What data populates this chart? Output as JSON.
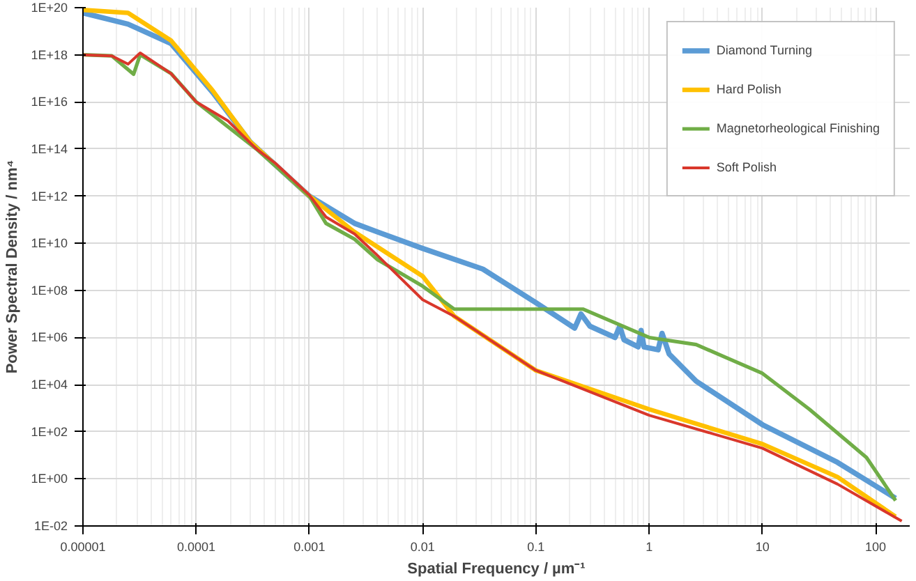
{
  "chart_data": {
    "type": "line",
    "xlabel": "Spatial Frequency / µm⁻¹",
    "ylabel": "Power Spectral Density / nm⁴",
    "log": "xy",
    "grid": true,
    "legend": "top right",
    "marker": "none",
    "line_style": "solid",
    "xlim": [
      1e-05,
      200
    ],
    "xticks": [
      {
        "value": 1e-05,
        "label": "0.00001"
      },
      {
        "value": 0.0001,
        "label": "0.0001"
      },
      {
        "value": 0.001,
        "label": "0.001"
      },
      {
        "value": 0.01,
        "label": "0.01"
      },
      {
        "value": 0.1,
        "label": "0.1"
      },
      1,
      10,
      100
    ],
    "ylim": [
      0.01,
      1e+20
    ],
    "yticks": [
      {
        "value": 0.01,
        "label": "1E-02"
      },
      {
        "value": 1,
        "label": "1E+00"
      },
      {
        "value": 100,
        "label": "1E+02"
      },
      {
        "value": 10000.0,
        "label": "1E+04"
      },
      {
        "value": 1000000.0,
        "label": "1E+06"
      },
      {
        "value": 100000000.0,
        "label": "1E+08"
      },
      {
        "value": 10000000000.0,
        "label": "1E+10"
      },
      {
        "value": 1000000000000.0,
        "label": "1E+12"
      },
      {
        "value": 100000000000000.0,
        "label": "1E+14"
      },
      {
        "value": 1e+16,
        "label": "1E+16"
      },
      {
        "value": 1e+18,
        "label": "1E+18"
      },
      {
        "value": 1e+20,
        "label": "1E+20"
      }
    ],
    "series": [
      {
        "name": "Diamond Turning",
        "color": "#5b9bd5",
        "x": [
          1e-05,
          2.5e-05,
          6e-05,
          0.00014,
          0.0003,
          0.001,
          0.0025,
          0.004,
          0.01,
          0.034,
          0.1,
          0.22,
          0.25,
          0.3,
          0.5,
          0.55,
          0.6,
          0.8,
          0.85,
          0.9,
          1.2,
          1.3,
          1.5,
          2.6,
          10,
          46,
          150
        ],
        "values": [
          6e+19,
          2e+19,
          3e+18,
          2.5e+16,
          200000000000000.0,
          1000000000000.0,
          70000000000.0,
          30000000000.0,
          6000000000.0,
          800000000.0,
          30000000.0,
          2500000.0,
          10000000.0,
          3000000.0,
          1000000.0,
          3000000.0,
          800000.0,
          400000.0,
          2000000.0,
          400000.0,
          300000.0,
          1500000.0,
          200000.0,
          14000.0,
          200,
          5,
          0.15
        ]
      },
      {
        "name": "Hard Polish",
        "color": "#ffc000",
        "x": [
          1e-05,
          2.5e-05,
          6e-05,
          0.00014,
          0.0003,
          0.001,
          0.0025,
          0.01,
          0.019,
          0.1,
          1,
          10,
          46,
          150
        ],
        "values": [
          8e+19,
          6e+19,
          4e+18,
          3e+16,
          200000000000000.0,
          1000000000000.0,
          30000000000.0,
          400000000.0,
          8000000.0,
          40000.0,
          900,
          30,
          1.2,
          0.025
        ]
      },
      {
        "name": "Magnetorheological Finishing",
        "color": "#70ad47",
        "x": [
          1e-05,
          1.8e-05,
          2.8e-05,
          3.2e-05,
          6e-05,
          0.0001,
          0.00034,
          0.001,
          0.0014,
          0.0025,
          0.004,
          0.01,
          0.019,
          0.1,
          0.26,
          1,
          2.6,
          10,
          26,
          83,
          150
        ],
        "values": [
          1e+18,
          9e+17,
          1.5e+17,
          1e+18,
          1.6e+17,
          1e+16,
          100000000000000.0,
          1000000000000.0,
          70000000000.0,
          15000000000.0,
          2000000000.0,
          150000000.0,
          16000000.0,
          16000000.0,
          16000000.0,
          1000000.0,
          500000.0,
          30000.0,
          900,
          8,
          0.12
        ]
      },
      {
        "name": "Soft Polish",
        "color": "#d9372b",
        "x": [
          1e-05,
          1.8e-05,
          2.5e-05,
          3.2e-05,
          6e-05,
          0.0001,
          0.00019,
          0.00034,
          0.0005,
          0.001,
          0.0014,
          0.0025,
          0.004,
          0.01,
          0.019,
          0.1,
          1,
          10,
          46,
          170
        ],
        "values": [
          1e+18,
          9e+17,
          4e+17,
          1.2e+18,
          1.6e+17,
          1e+16,
          1600000000000000.0,
          100000000000000.0,
          25000000000000.0,
          1100000000000.0,
          130000000000.0,
          25000000000.0,
          3000000000.0,
          40000000.0,
          8000000.0,
          40000.0,
          500,
          20,
          0.6,
          0.016
        ]
      }
    ]
  }
}
